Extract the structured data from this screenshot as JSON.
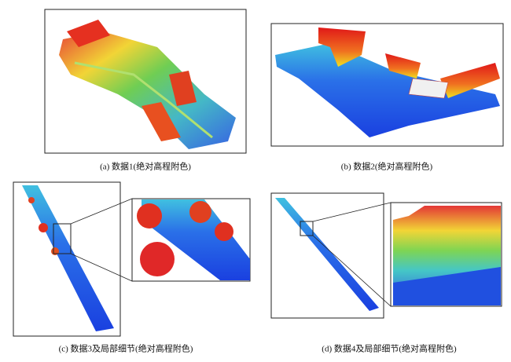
{
  "figure": {
    "panels": [
      {
        "caption": "(a) 数据1(绝对高程附色)"
      },
      {
        "caption": "(b) 数据2(绝对高程附色)"
      },
      {
        "caption": "(c) 数据3及局部细节(绝对高程附色)"
      },
      {
        "caption": "(d) 数据4及局部细节(绝对高程附色)"
      }
    ]
  }
}
